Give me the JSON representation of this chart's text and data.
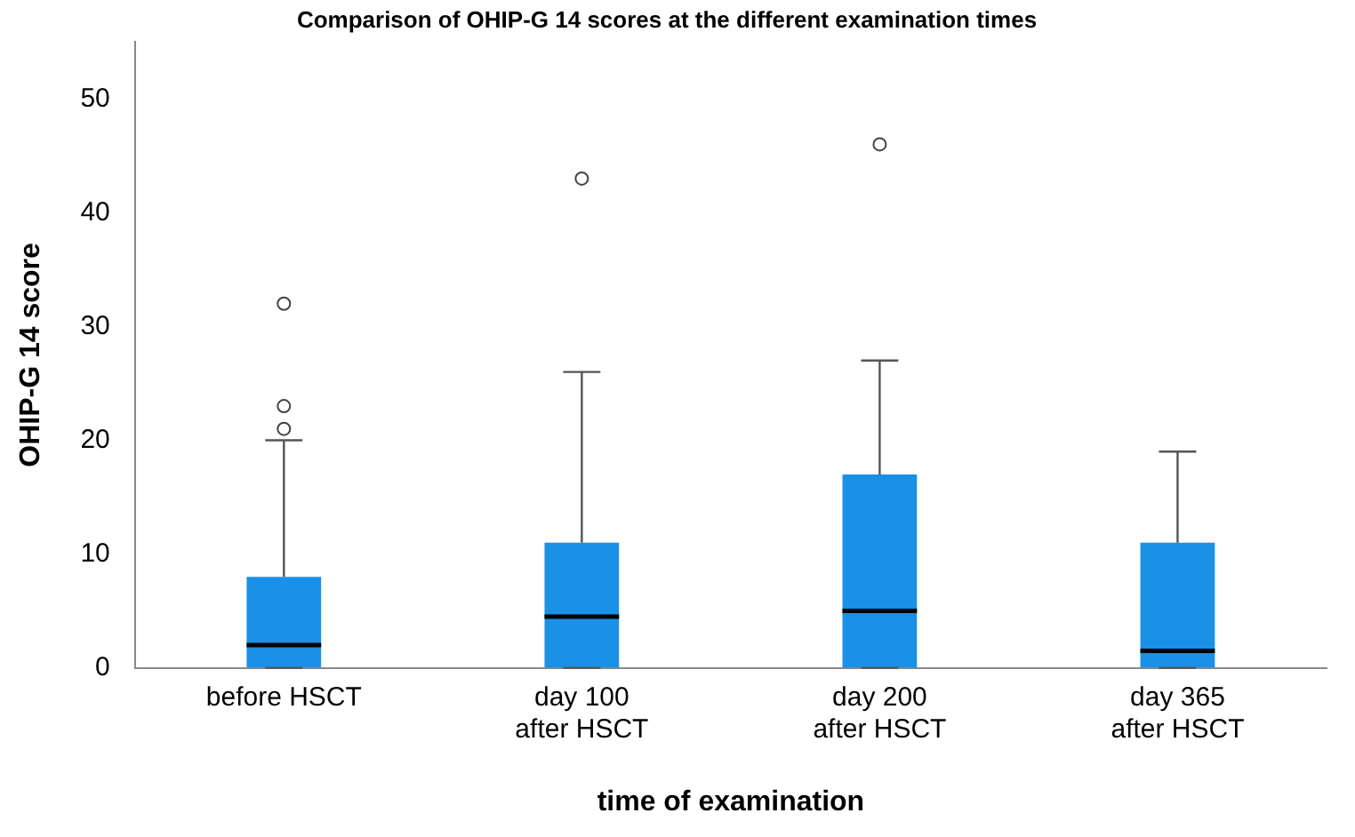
{
  "chart_data": {
    "type": "box",
    "title": "Comparison of OHIP-G 14 scores at the different examination times",
    "xlabel": "time of examination",
    "ylabel": "OHIP-G 14 score",
    "categories": [
      "before HSCT",
      "day 100\nafter HSCT",
      "day 200\nafter HSCT",
      "day 365\nafter HSCT"
    ],
    "color": "#1a90e6",
    "boxes": [
      {
        "low": 0,
        "q1": 0,
        "median": 2,
        "q3": 8,
        "high": 20,
        "outliers": [
          21,
          23,
          32
        ]
      },
      {
        "low": 0,
        "q1": 0,
        "median": 4.5,
        "q3": 11,
        "high": 26,
        "outliers": [
          43
        ]
      },
      {
        "low": 0,
        "q1": 0,
        "median": 5,
        "q3": 17,
        "high": 27,
        "outliers": [
          46
        ]
      },
      {
        "low": 0,
        "q1": 0,
        "median": 1.5,
        "q3": 11,
        "high": 19
      }
    ],
    "ylim": [
      0,
      55
    ],
    "yticks": [
      0,
      10,
      20,
      30,
      40,
      50
    ],
    "grid": false,
    "legend": false
  }
}
